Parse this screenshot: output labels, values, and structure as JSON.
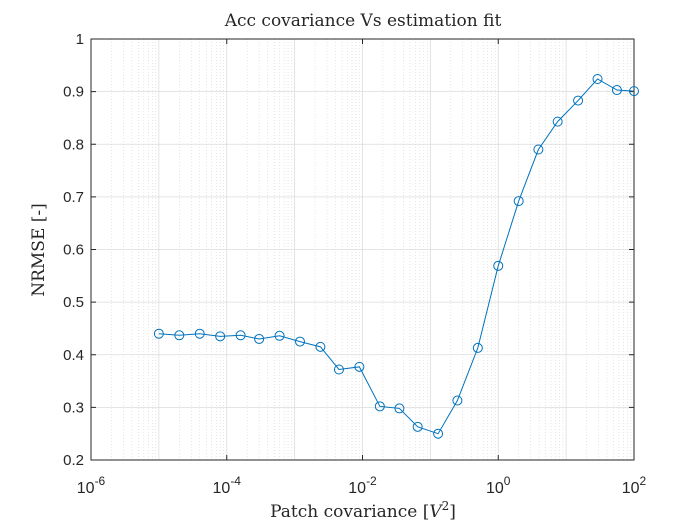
{
  "chart_data": {
    "type": "line",
    "title": "Acc covariance Vs estimation fit",
    "xlabel_prefix": "Patch covariance ",
    "xlabel_var": "V",
    "xlabel_exp": "2",
    "ylabel": "NRMSE [-]",
    "x_scale": "log",
    "xlim": [
      1e-06,
      100
    ],
    "ylim": [
      0.2,
      1
    ],
    "x_ticks": [
      {
        "base": "10",
        "exp": "-6"
      },
      {
        "base": "10",
        "exp": "-4"
      },
      {
        "base": "10",
        "exp": "-2"
      },
      {
        "base": "10",
        "exp": "0"
      },
      {
        "base": "10",
        "exp": "2"
      }
    ],
    "y_ticks": [
      "0.2",
      "0.3",
      "0.4",
      "0.5",
      "0.6",
      "0.7",
      "0.8",
      "0.9",
      "1"
    ],
    "grid": true,
    "minor_grid": true,
    "marker": "circle",
    "color": "#0072BD",
    "series": [
      {
        "x": [
          1e-05,
          2e-05,
          4e-05,
          8e-05,
          0.00016,
          0.0003,
          0.0006,
          0.0012,
          0.0024,
          0.0045,
          0.009,
          0.018,
          0.035,
          0.065,
          0.13,
          0.25,
          0.5,
          1.0,
          2.0,
          3.9,
          7.5,
          15,
          29,
          56,
          100
        ],
        "y": [
          0.44,
          0.437,
          0.44,
          0.435,
          0.437,
          0.43,
          0.436,
          0.425,
          0.415,
          0.372,
          0.377,
          0.302,
          0.298,
          0.263,
          0.25,
          0.313,
          0.413,
          0.569,
          0.692,
          0.79,
          0.843,
          0.883,
          0.924,
          0.903,
          0.901
        ]
      }
    ]
  }
}
